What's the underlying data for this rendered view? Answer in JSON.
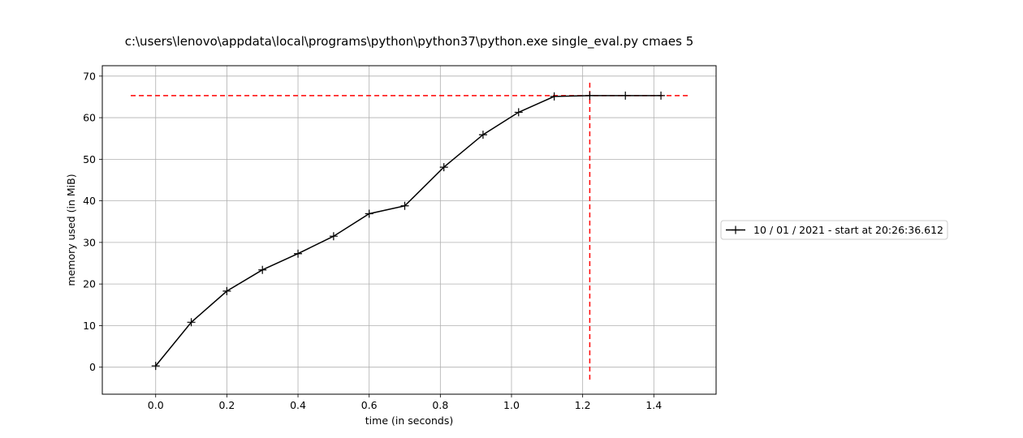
{
  "chart_data": {
    "type": "line",
    "title": "c:\\users\\lenovo\\appdata\\local\\programs\\python\\python37\\python.exe single_eval.py cmaes 5",
    "xlabel": "time (in seconds)",
    "ylabel": "memory used (in MiB)",
    "xlim": [
      -0.15,
      1.575
    ],
    "ylim": [
      -6.5,
      72.5
    ],
    "xticks": [
      0.0,
      0.2,
      0.4,
      0.6,
      0.8,
      1.0,
      1.2,
      1.4
    ],
    "xtick_labels": [
      "0.0",
      "0.2",
      "0.4",
      "0.6",
      "0.8",
      "1.0",
      "1.2",
      "1.4"
    ],
    "yticks": [
      0,
      10,
      20,
      30,
      40,
      50,
      60,
      70
    ],
    "ytick_labels": [
      "0",
      "10",
      "20",
      "30",
      "40",
      "50",
      "60",
      "70"
    ],
    "grid": true,
    "legend_position": "right",
    "series": [
      {
        "name": "10 / 01 / 2021 - start at 20:26:36.612",
        "color": "#000000",
        "marker": "+",
        "x": [
          0.0,
          0.1,
          0.2,
          0.3,
          0.4,
          0.5,
          0.6,
          0.7,
          0.81,
          0.92,
          1.02,
          1.12,
          1.22,
          1.32,
          1.42
        ],
        "y": [
          0.3,
          10.8,
          18.3,
          23.4,
          27.3,
          31.5,
          36.9,
          38.8,
          48.1,
          55.9,
          61.3,
          65.1,
          65.3,
          65.3,
          65.3
        ]
      }
    ],
    "reference_lines": {
      "color": "#ff0000",
      "style": "dashed",
      "horizontal": {
        "y": 65.3,
        "xmin": -0.07,
        "xmax": 1.5
      },
      "vertical": {
        "x": 1.22,
        "ymin": -3.0,
        "ymax": 68.7
      }
    }
  }
}
